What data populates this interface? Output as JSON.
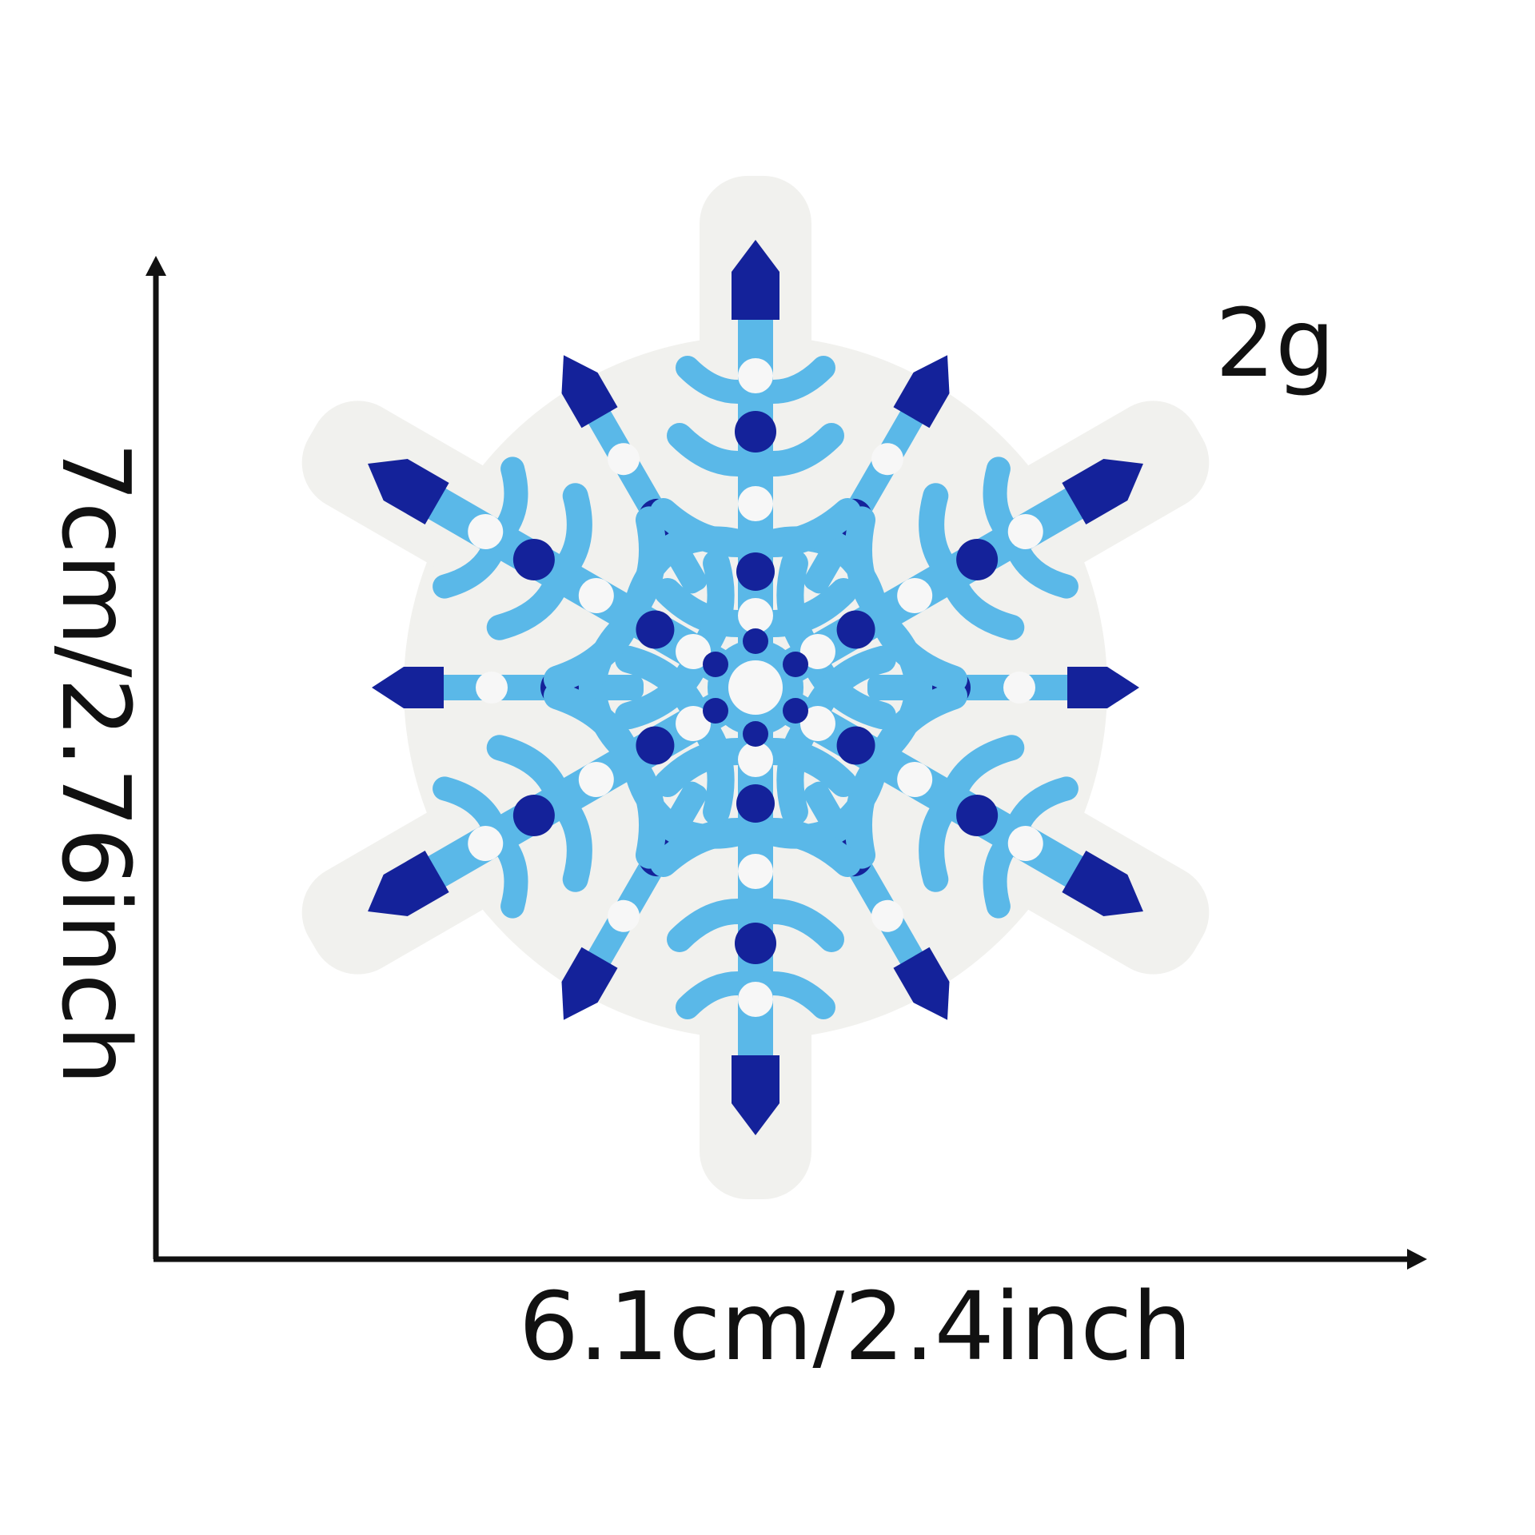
{
  "labels": {
    "weight": "2g",
    "width": "6.1cm/2.4inch",
    "height": "7cm/2.76inch"
  },
  "colors": {
    "background": "#ffffff",
    "patch_edge": "#f1f1ee",
    "light_blue": "#5ab8e8",
    "dark_blue": "#14229a",
    "white_dot": "#f7f7f7",
    "text": "#111111"
  }
}
